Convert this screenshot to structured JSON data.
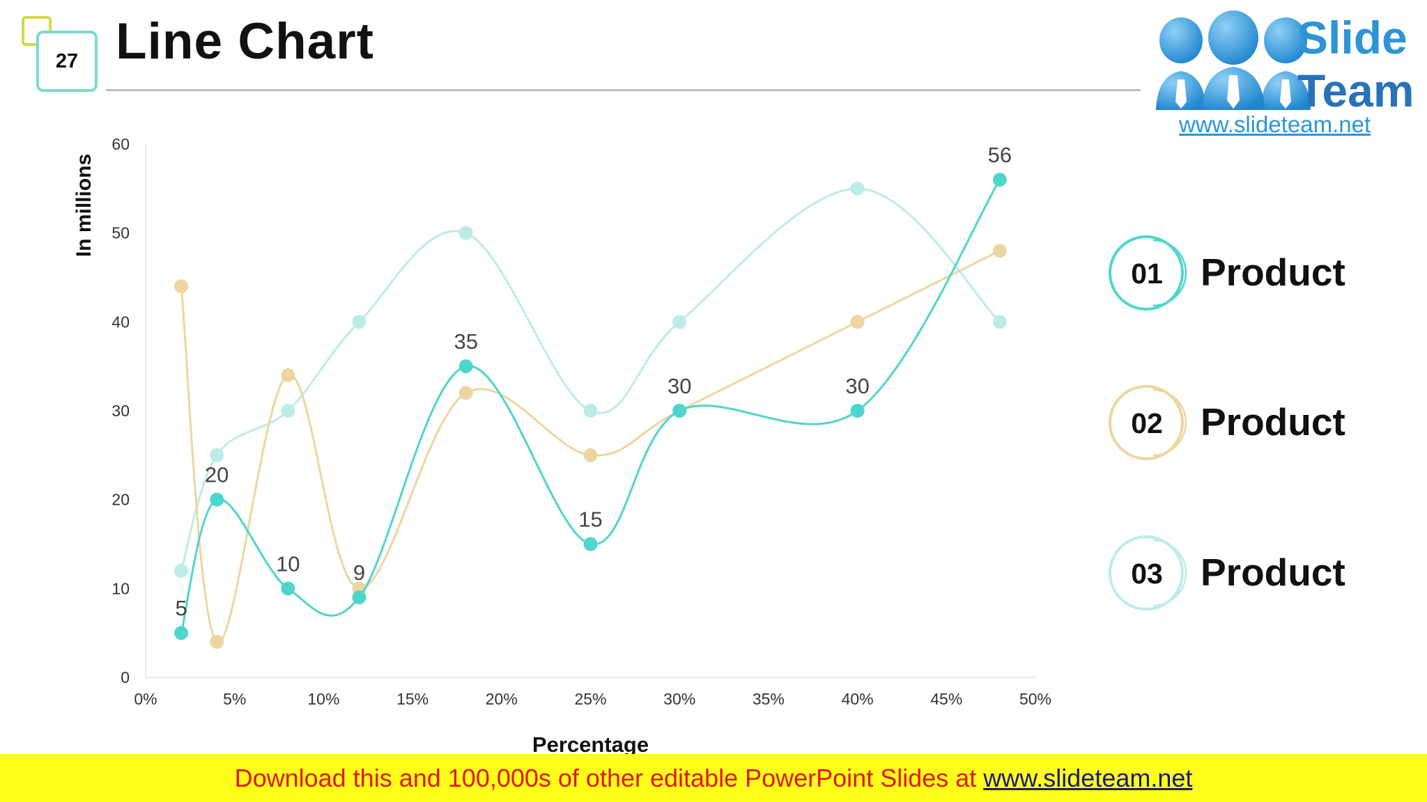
{
  "slide": {
    "number": "27",
    "title": "Line Chart"
  },
  "logo": {
    "line1": "Slide",
    "line2": "Team",
    "url": "www.slideteam.net"
  },
  "legend": [
    {
      "num": "01",
      "label": "Product",
      "color": "#4fd6cc"
    },
    {
      "num": "02",
      "label": "Product",
      "color": "#ecd6a0"
    },
    {
      "num": "03",
      "label": "Product",
      "color": "#bdece8"
    }
  ],
  "banner": {
    "text": "Download this and 100,000s of other editable PowerPoint Slides at",
    "link": "www.slideteam.net"
  },
  "chart_data": {
    "type": "scatter",
    "xlabel": "Percentage",
    "ylabel": "In millions",
    "xlim": [
      0,
      0.5
    ],
    "ylim": [
      0,
      60
    ],
    "xticks": [
      "0%",
      "5%",
      "10%",
      "15%",
      "20%",
      "25%",
      "30%",
      "35%",
      "40%",
      "45%",
      "50%"
    ],
    "yticks": [
      "0",
      "10",
      "20",
      "30",
      "40",
      "50",
      "60"
    ],
    "grid": false,
    "smooth": true,
    "series": [
      {
        "color": "#4fd6cc",
        "x": [
          0.02,
          0.04,
          0.08,
          0.12,
          0.18,
          0.25,
          0.3,
          0.4,
          0.48
        ],
        "y": [
          5,
          20,
          10,
          9,
          35,
          15,
          30,
          30,
          56
        ],
        "labels": [
          "5",
          "20",
          "10",
          "9",
          "35",
          "15",
          "30",
          "30",
          "56"
        ]
      },
      {
        "color": "#ecd6a0",
        "x": [
          0.02,
          0.04,
          0.08,
          0.12,
          0.18,
          0.25,
          0.3,
          0.4,
          0.48
        ],
        "y": [
          44,
          4,
          34,
          10,
          32,
          25,
          30,
          40,
          48
        ]
      },
      {
        "color": "#bdece8",
        "x": [
          0.02,
          0.04,
          0.08,
          0.12,
          0.18,
          0.25,
          0.3,
          0.4,
          0.48
        ],
        "y": [
          12,
          25,
          30,
          40,
          50,
          30,
          40,
          55,
          40
        ]
      }
    ]
  }
}
